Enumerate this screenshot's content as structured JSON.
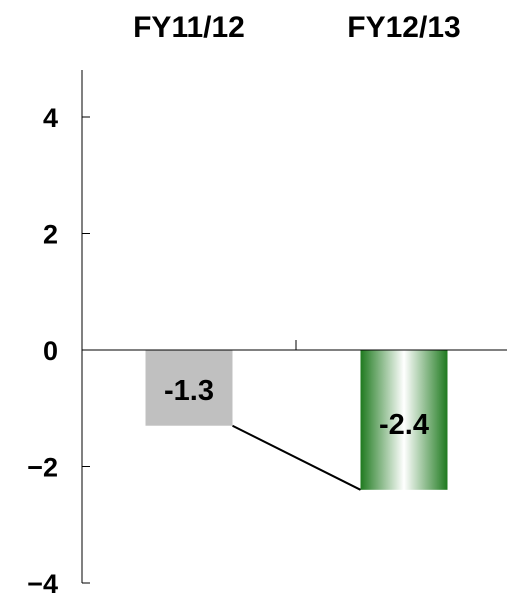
{
  "chart_data": {
    "type": "bar",
    "title": "",
    "xlabel": "",
    "ylabel": "",
    "categories": [
      "FY11/12",
      "FY12/13"
    ],
    "values": [
      -1.3,
      -2.4
    ],
    "data_labels": [
      "-1.3",
      "-2.4"
    ],
    "ylim": [
      -4,
      4
    ],
    "yticks": [
      4,
      2,
      0,
      -2,
      -4
    ],
    "ytick_labels": [
      "4",
      "2",
      "0",
      "−2",
      "−4"
    ],
    "category_axis_position": "top",
    "connector_line": true,
    "grid": false,
    "legend": "none",
    "bar_colors": [
      "#c0c0c0",
      "#2e7d32"
    ]
  }
}
